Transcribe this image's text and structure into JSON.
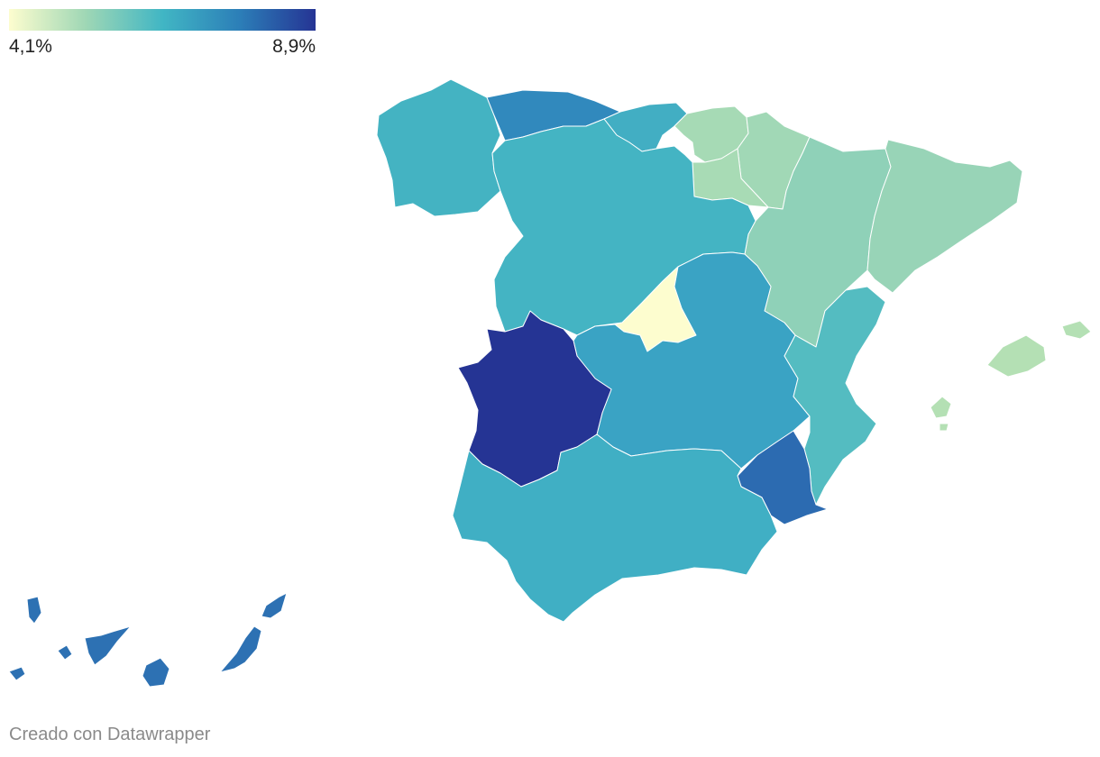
{
  "legend": {
    "min_label": "4,1%",
    "max_label": "8,9%",
    "gradient_colors": [
      "#fdfdcf",
      "#9fd7b5",
      "#41b6c4",
      "#2c7fb8",
      "#253494"
    ]
  },
  "credit": "Creado con Datawrapper",
  "regions": [
    {
      "name": "Galicia",
      "color": "#44b3c2"
    },
    {
      "name": "Asturias",
      "color": "#3189bd"
    },
    {
      "name": "Cantabria",
      "color": "#42aec3"
    },
    {
      "name": "País Vasco",
      "color": "#a6dab5"
    },
    {
      "name": "Navarra",
      "color": "#a1d8b6"
    },
    {
      "name": "La Rioja",
      "color": "#a8dbb5"
    },
    {
      "name": "Aragón",
      "color": "#8fd1b8"
    },
    {
      "name": "Cataluña",
      "color": "#98d4b7"
    },
    {
      "name": "Castilla y León",
      "color": "#44b4c3"
    },
    {
      "name": "Comunidad de Madrid",
      "color": "#fdfdcf"
    },
    {
      "name": "Castilla-La Mancha",
      "color": "#3aa3c4"
    },
    {
      "name": "Extremadura",
      "color": "#253494"
    },
    {
      "name": "Comunidad Valenciana",
      "color": "#54bcc1"
    },
    {
      "name": "Región de Murcia",
      "color": "#2c6bb1"
    },
    {
      "name": "Andalucía",
      "color": "#40afc4"
    },
    {
      "name": "Illes Balears",
      "color": "#b4e0b4"
    },
    {
      "name": "Canarias",
      "color": "#2d71b3"
    }
  ]
}
